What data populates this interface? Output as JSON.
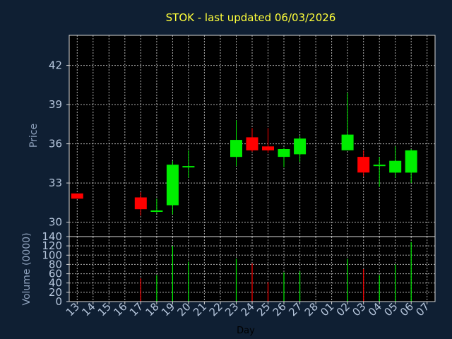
{
  "chart_data": {
    "type": "candlestick",
    "title": "STOK - last updated 06/03/2026",
    "xlabel": "Day",
    "categories": [
      "13",
      "14",
      "15",
      "16",
      "17",
      "18",
      "19",
      "20",
      "21",
      "22",
      "23",
      "24",
      "25",
      "26",
      "27",
      "28",
      "01",
      "02",
      "03",
      "04",
      "05",
      "06",
      "07"
    ],
    "colors": {
      "up": "#00ee00",
      "down": "#ff0000",
      "background": "#0f1f33",
      "plot": "#000000",
      "grid": "#e8e8e8",
      "title": "#ffff3a",
      "ticks": "#b7c7dd"
    },
    "price_panel": {
      "ylabel": "Price",
      "ylim": [
        28.9,
        44.3
      ],
      "yticks": [
        30,
        33,
        36,
        39,
        42
      ],
      "candles": [
        {
          "day": "13",
          "open": 32.2,
          "close": 31.8,
          "high": 32.2,
          "low": 31.8
        },
        {
          "day": "17",
          "open": 31.9,
          "close": 31.0,
          "high": 32.3,
          "low": 30.5
        },
        {
          "day": "18",
          "open": 30.8,
          "close": 30.9,
          "high": 31.8,
          "low": 30.7
        },
        {
          "day": "19",
          "open": 31.3,
          "close": 34.4,
          "high": 34.7,
          "low": 30.6
        },
        {
          "day": "20",
          "open": 34.2,
          "close": 34.3,
          "high": 35.5,
          "low": 33.4
        },
        {
          "day": "23",
          "open": 35.0,
          "close": 36.3,
          "high": 37.8,
          "low": 34.3
        },
        {
          "day": "24",
          "open": 36.5,
          "close": 35.5,
          "high": 37.2,
          "low": 35.4
        },
        {
          "day": "25",
          "open": 35.8,
          "close": 35.5,
          "high": 37.2,
          "low": 35.3
        },
        {
          "day": "26",
          "open": 35.0,
          "close": 35.6,
          "high": 35.7,
          "low": 34.2
        },
        {
          "day": "27",
          "open": 35.2,
          "close": 36.4,
          "high": 36.6,
          "low": 34.6
        },
        {
          "day": "02",
          "open": 35.5,
          "close": 36.7,
          "high": 39.9,
          "low": 35.5
        },
        {
          "day": "03",
          "open": 35.0,
          "close": 33.8,
          "high": 35.5,
          "low": 33.5
        },
        {
          "day": "04",
          "open": 34.3,
          "close": 34.4,
          "high": 35.0,
          "low": 32.7
        },
        {
          "day": "05",
          "open": 33.8,
          "close": 34.7,
          "high": 35.8,
          "low": 33.4
        },
        {
          "day": "06",
          "open": 33.8,
          "close": 35.5,
          "high": 35.6,
          "low": 33.0
        }
      ]
    },
    "volume_panel": {
      "ylabel": "Volume (0000)",
      "ylim": [
        0,
        140
      ],
      "yticks": [
        0,
        20,
        40,
        60,
        80,
        100,
        120,
        140
      ],
      "bars": [
        {
          "day": "17",
          "value": 50,
          "direction": "down"
        },
        {
          "day": "18",
          "value": 57,
          "direction": "up"
        },
        {
          "day": "19",
          "value": 120,
          "direction": "up"
        },
        {
          "day": "20",
          "value": 86,
          "direction": "up"
        },
        {
          "day": "23",
          "value": 92,
          "direction": "up"
        },
        {
          "day": "24",
          "value": 82,
          "direction": "down"
        },
        {
          "day": "25",
          "value": 42,
          "direction": "down"
        },
        {
          "day": "26",
          "value": 63,
          "direction": "up"
        },
        {
          "day": "27",
          "value": 65,
          "direction": "up"
        },
        {
          "day": "02",
          "value": 92,
          "direction": "up"
        },
        {
          "day": "03",
          "value": 70,
          "direction": "down"
        },
        {
          "day": "04",
          "value": 57,
          "direction": "up"
        },
        {
          "day": "05",
          "value": 80,
          "direction": "up"
        },
        {
          "day": "06",
          "value": 128,
          "direction": "up"
        }
      ]
    }
  }
}
